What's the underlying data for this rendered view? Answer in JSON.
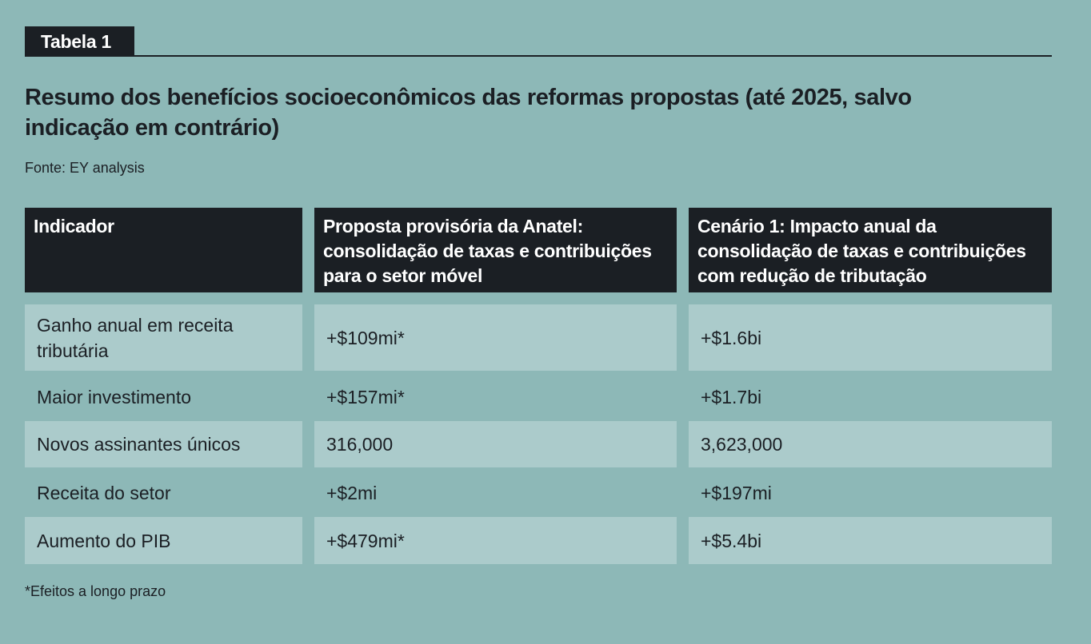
{
  "tag": "Tabela 1",
  "title": "Resumo dos benefícios socioeconômicos das reformas propostas (até 2025, salvo indicação em contrário)",
  "source": "Fonte: EY analysis",
  "table": {
    "headers": [
      "Indicador",
      "Proposta provisória da Anatel: consolidação de taxas e contribuições para o setor móvel",
      "Cenário 1: Impacto anual da consolidação de taxas e contribuições com redução de tributação"
    ],
    "rows": [
      [
        "Ganho anual em receita tributária",
        "+$109mi*",
        "+$1.6bi"
      ],
      [
        "Maior investimento",
        "+$157mi*",
        "+$1.7bi"
      ],
      [
        "Novos assinantes únicos",
        "316,000",
        "3,623,000"
      ],
      [
        "Receita do setor",
        "+$2mi",
        "+$197mi"
      ],
      [
        "Aumento do PIB",
        "+$479mi*",
        "+$5.4bi"
      ]
    ]
  },
  "footnote": "*Efeitos a longo prazo"
}
